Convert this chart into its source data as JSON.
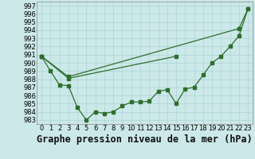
{
  "title": "Graphe pression niveau de la mer (hPa)",
  "x_ticks": [
    0,
    1,
    2,
    3,
    4,
    5,
    6,
    7,
    8,
    9,
    10,
    11,
    12,
    13,
    14,
    15,
    16,
    17,
    18,
    19,
    20,
    21,
    22,
    23
  ],
  "y_ticks": [
    983,
    984,
    985,
    986,
    987,
    988,
    989,
    990,
    991,
    992,
    993,
    994,
    995,
    996,
    997
  ],
  "ylim": [
    982.5,
    997.5
  ],
  "xlim": [
    -0.5,
    23.5
  ],
  "bg_color": "#cce8e8",
  "grid_color": "#aad4d4",
  "line_color": "#2d6e2d",
  "line1": [
    990.8,
    989.0,
    987.3,
    987.2,
    984.5,
    983.0,
    984.0,
    983.8,
    984.0,
    984.7,
    985.2,
    985.2,
    985.3,
    986.5,
    986.7,
    985.0,
    986.8,
    987.0,
    988.5,
    990.0,
    990.8,
    992.0,
    993.3,
    996.6
  ],
  "line2": [
    990.8,
    null,
    null,
    988.3,
    null,
    null,
    null,
    null,
    null,
    null,
    null,
    null,
    null,
    null,
    null,
    null,
    null,
    null,
    null,
    null,
    null,
    null,
    994.2,
    996.6
  ],
  "line3": [
    990.8,
    null,
    null,
    988.1,
    null,
    null,
    null,
    null,
    null,
    null,
    null,
    null,
    null,
    null,
    null,
    990.8,
    null,
    null,
    null,
    null,
    null,
    null,
    null,
    null
  ],
  "title_fontsize": 8.5,
  "tick_fontsize": 6.0
}
